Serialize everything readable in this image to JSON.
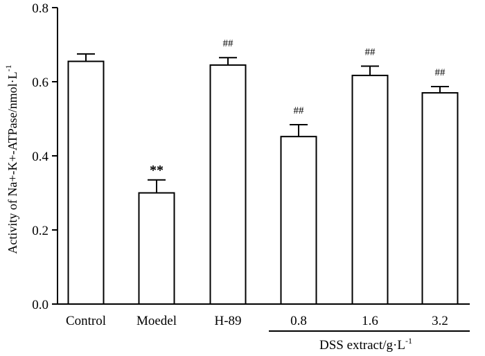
{
  "chart_data": {
    "type": "bar",
    "categories": [
      "Control",
      "Moedel",
      "H-89",
      "0.8",
      "1.6",
      "3.2"
    ],
    "values": [
      0.655,
      0.3,
      0.645,
      0.452,
      0.617,
      0.57
    ],
    "errors": [
      0.02,
      0.035,
      0.02,
      0.032,
      0.025,
      0.017
    ],
    "annotations": [
      "",
      "**",
      "##",
      "##",
      "##",
      "##"
    ],
    "ylabel": "Activity of Na+-K+-ATPase/nmol·L",
    "ylabel_sup": "-1",
    "ylim": [
      0,
      0.8
    ],
    "yticks": [
      "0.0",
      "0.2",
      "0.4",
      "0.6",
      "0.8"
    ],
    "ytick_values": [
      0,
      0.2,
      0.4,
      0.6,
      0.8
    ],
    "group_label": "DSS extract/g·L",
    "group_label_sup": "-1",
    "group_span": [
      "0.8",
      "3.2"
    ],
    "bar_fill": "#ffffff",
    "bar_stroke": "#000000",
    "grid": false
  }
}
